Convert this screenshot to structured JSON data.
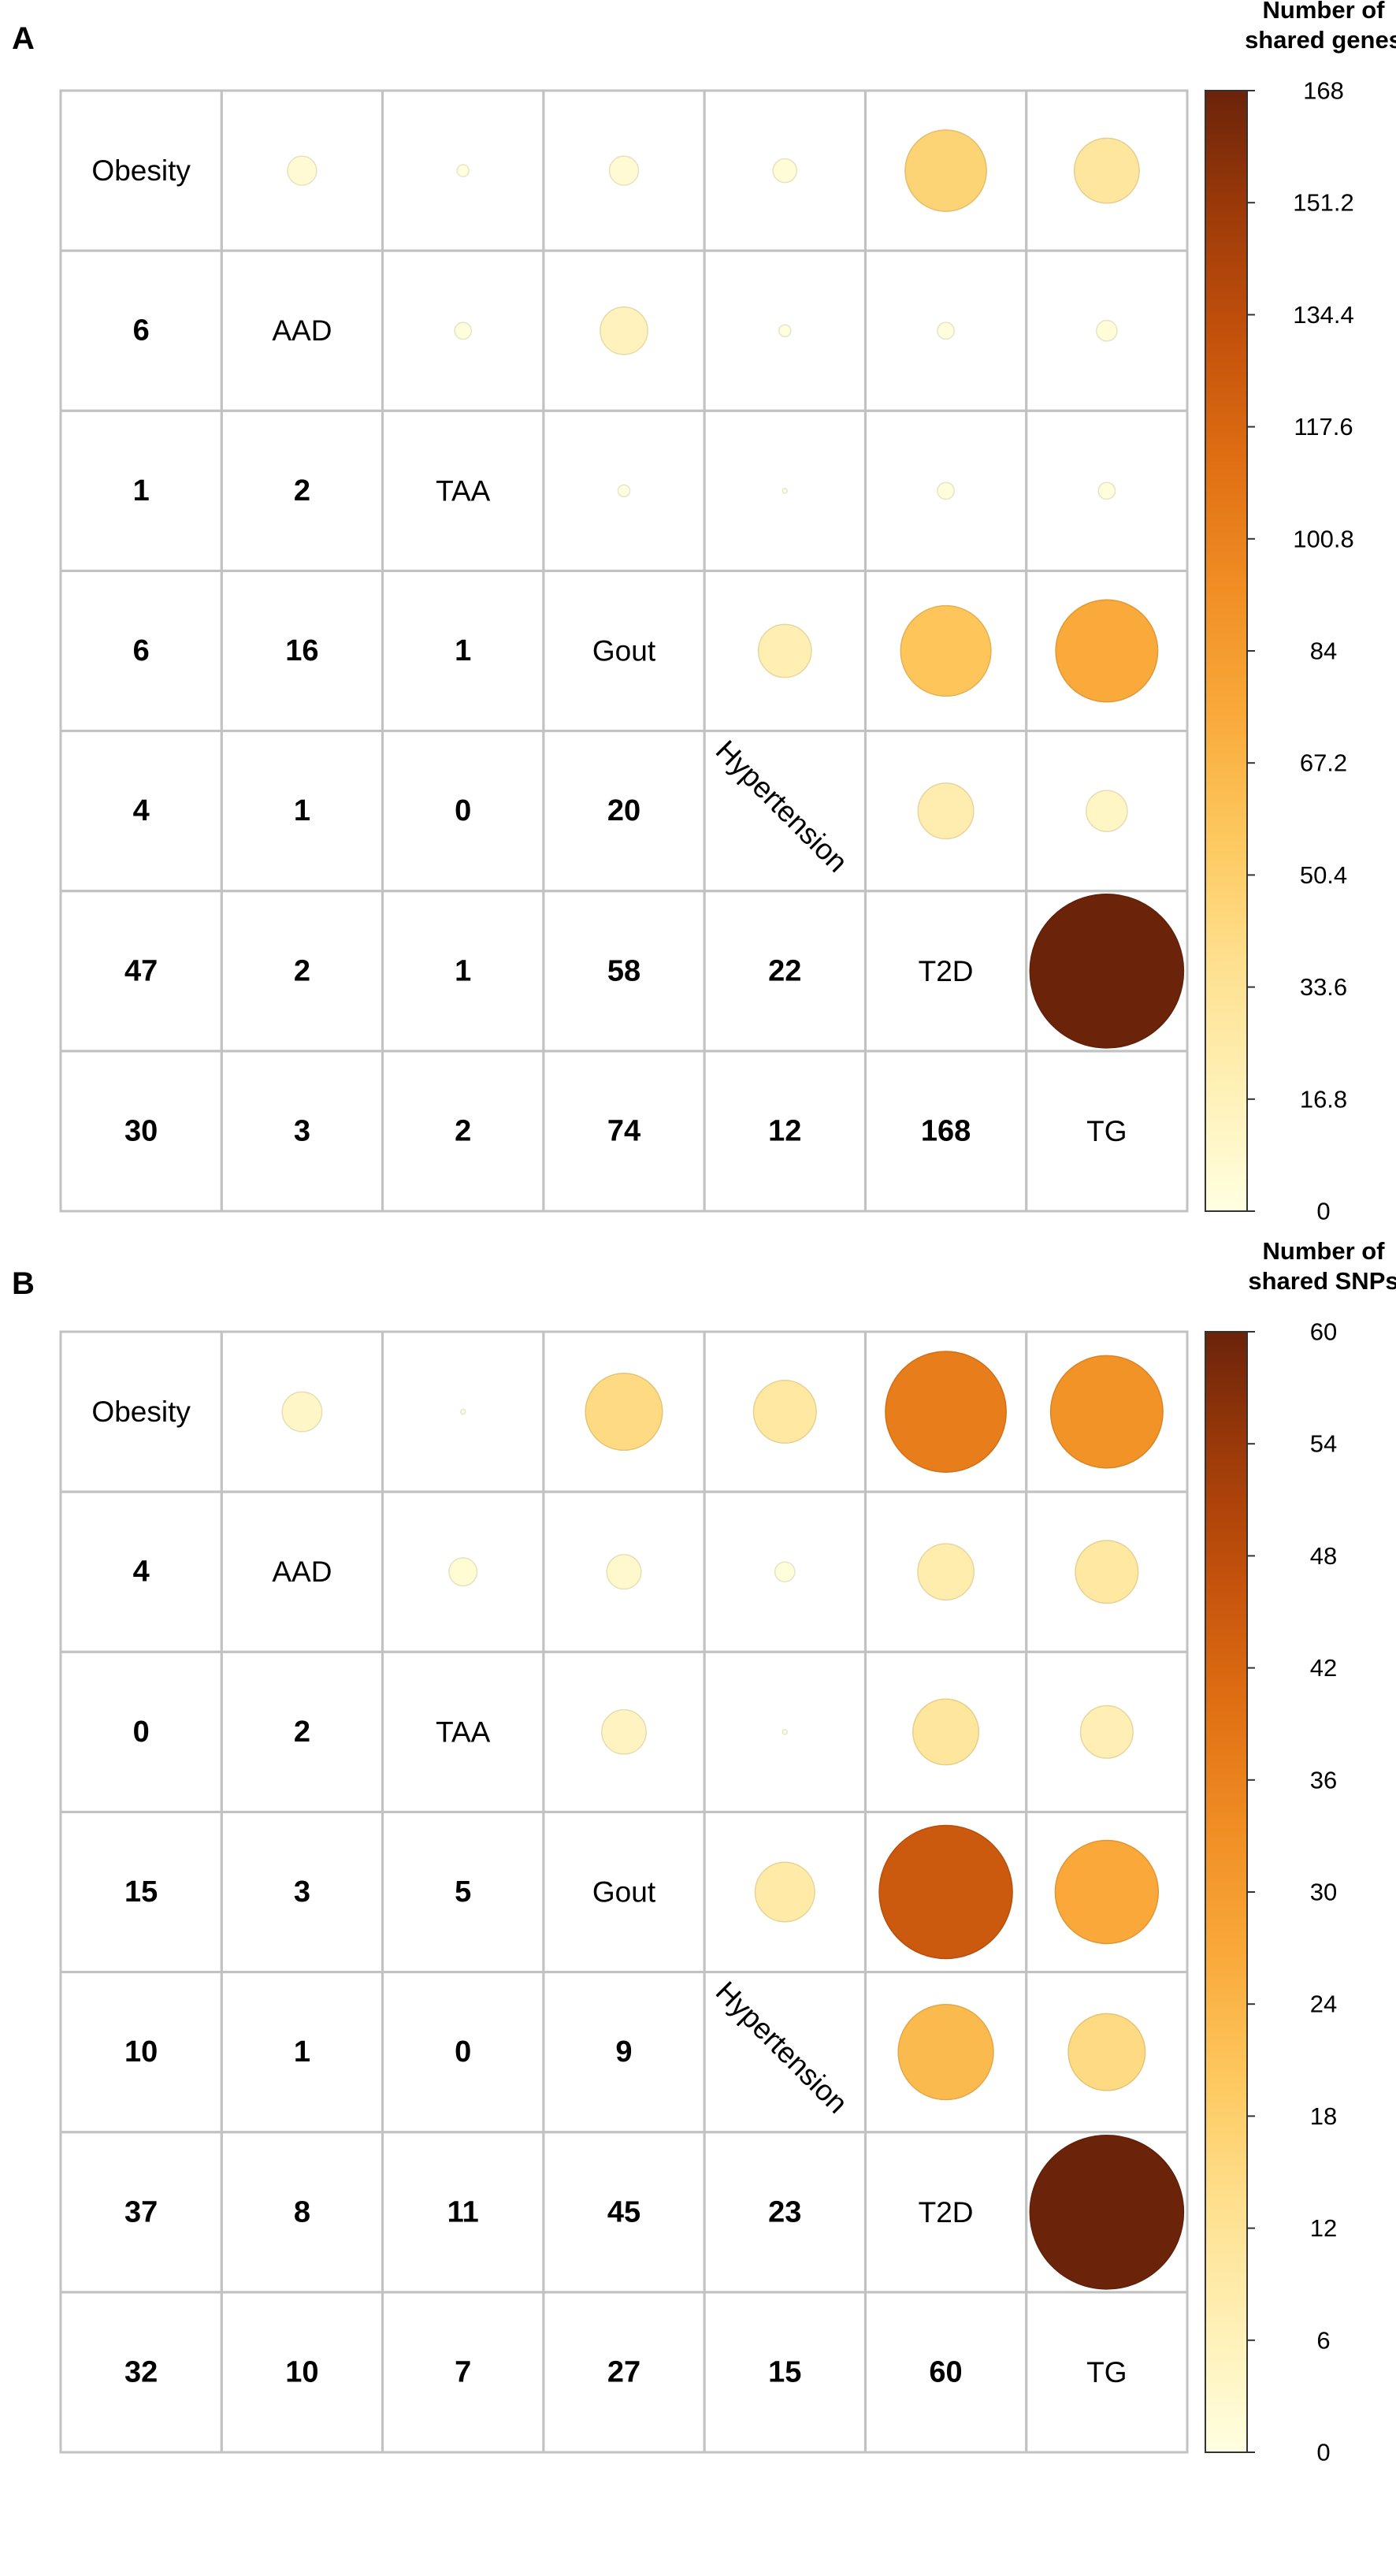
{
  "colors": {
    "scale": [
      "#ffffe0",
      "#fff0b6",
      "#fee08e",
      "#fdc85e",
      "#f9a93a",
      "#f08e24",
      "#e06f13",
      "#c4520c",
      "#9e3b09",
      "#6b230a"
    ],
    "grid": "#c2c2c2",
    "text": "#000000",
    "background": "#ffffff"
  },
  "chart_data": [
    {
      "type": "correlogram",
      "panel_label": "A",
      "variables": [
        "Obesity",
        "AAD",
        "TAA",
        "Gout",
        "Hypertension",
        "T2D",
        "TG"
      ],
      "matrix": [
        [
          null,
          6,
          1,
          6,
          4,
          47,
          30
        ],
        [
          6,
          null,
          2,
          16,
          1,
          2,
          3
        ],
        [
          1,
          2,
          null,
          1,
          0,
          2,
          2
        ],
        [
          6,
          16,
          1,
          null,
          20,
          58,
          74
        ],
        [
          4,
          1,
          0,
          20,
          null,
          22,
          12
        ],
        [
          47,
          2,
          1,
          58,
          22,
          null,
          168
        ],
        [
          30,
          3,
          2,
          74,
          12,
          168,
          null
        ]
      ],
      "lower_triangle": "numbers",
      "upper_triangle": "circles",
      "colorbar": {
        "title_lines": [
          "Number of",
          "shared genes"
        ],
        "min": 0,
        "max": 168,
        "ticks": [
          "168",
          "151.2",
          "134.4",
          "117.6",
          "100.8",
          "84",
          "67.2",
          "50.4",
          "33.6",
          "16.8",
          "0"
        ]
      }
    },
    {
      "type": "correlogram",
      "panel_label": "B",
      "variables": [
        "Obesity",
        "AAD",
        "TAA",
        "Gout",
        "Hypertension",
        "T2D",
        "TG"
      ],
      "matrix": [
        [
          null,
          4,
          0,
          15,
          10,
          37,
          32
        ],
        [
          4,
          null,
          2,
          3,
          1,
          8,
          10
        ],
        [
          0,
          2,
          null,
          5,
          0,
          11,
          7
        ],
        [
          15,
          3,
          5,
          null,
          9,
          45,
          27
        ],
        [
          10,
          1,
          0,
          9,
          null,
          23,
          15
        ],
        [
          37,
          8,
          11,
          45,
          23,
          null,
          60
        ],
        [
          32,
          10,
          7,
          27,
          15,
          60,
          null
        ]
      ],
      "lower_triangle": "numbers",
      "upper_triangle": "circles",
      "colorbar": {
        "title_lines": [
          "Number of",
          "shared SNPs"
        ],
        "min": 0,
        "max": 60,
        "ticks": [
          "60",
          "54",
          "48",
          "42",
          "36",
          "30",
          "24",
          "18",
          "12",
          "6",
          "0"
        ]
      }
    }
  ]
}
